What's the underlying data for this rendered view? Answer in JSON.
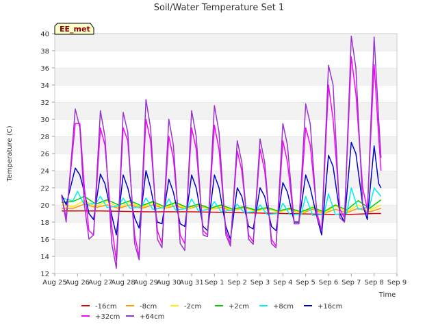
{
  "chart_data": {
    "type": "line",
    "title": "Soil/Water Temperature Set 1",
    "xlabel": "Time",
    "ylabel": "Temperature (C)",
    "station_label": "EE_met",
    "x_ticks": [
      "Aug 25",
      "Aug 26",
      "Aug 27",
      "Aug 28",
      "Aug 29",
      "Aug 30",
      "Aug 31",
      "Sep 1",
      "Sep 2",
      "Sep 3",
      "Sep 4",
      "Sep 5",
      "Sep 6",
      "Sep 7",
      "Sep 8",
      "Sep 9"
    ],
    "y_ticks": [
      12,
      14,
      16,
      18,
      20,
      22,
      24,
      26,
      28,
      30,
      32,
      34,
      36,
      38,
      40
    ],
    "xlim": [
      0,
      15
    ],
    "ylim": [
      12,
      40
    ],
    "grid": "horizontal bands",
    "legend_position": "bottom",
    "series": [
      {
        "name": "-16cm",
        "color": "#dd0000",
        "x": [
          0.3,
          2.0,
          4.0,
          6.0,
          8.0,
          10.0,
          12.0,
          13.0,
          14.0,
          14.3
        ],
        "y": [
          19.3,
          19.3,
          19.2,
          19.2,
          19.1,
          19.0,
          18.9,
          18.9,
          19.0,
          19.0
        ]
      },
      {
        "name": "-8cm",
        "color": "#ff9900",
        "x": [
          0.3,
          0.8,
          1.3,
          1.8,
          2.3,
          2.8,
          3.3,
          3.8,
          4.3,
          4.8,
          5.3,
          5.8,
          6.3,
          6.8,
          7.3,
          7.8,
          8.3,
          8.8,
          9.3,
          9.8,
          10.3,
          10.8,
          11.3,
          11.8,
          12.3,
          12.8,
          13.3,
          13.8,
          14.3
        ],
        "y": [
          19.6,
          19.6,
          20.1,
          19.7,
          20.0,
          19.6,
          20.0,
          19.6,
          20.0,
          19.6,
          19.9,
          19.5,
          19.9,
          19.5,
          19.7,
          19.3,
          19.7,
          19.3,
          19.6,
          19.2,
          19.5,
          19.0,
          19.5,
          19.0,
          19.5,
          19.1,
          19.6,
          19.2,
          19.6
        ]
      },
      {
        "name": "-2cm",
        "color": "#ffee00",
        "x": [
          0.3,
          0.8,
          1.3,
          1.8,
          2.3,
          2.8,
          3.3,
          3.8,
          4.3,
          4.8,
          5.3,
          5.8,
          6.3,
          6.8,
          7.3,
          7.8,
          8.3,
          8.8,
          9.3,
          9.8,
          10.3,
          10.8,
          11.3,
          11.8,
          12.3,
          12.8,
          13.3,
          13.8,
          14.3
        ],
        "y": [
          20.0,
          19.8,
          20.5,
          19.8,
          20.4,
          19.7,
          20.3,
          19.7,
          20.3,
          19.6,
          20.2,
          19.5,
          20.1,
          19.4,
          19.9,
          19.3,
          19.8,
          19.2,
          19.7,
          19.1,
          19.6,
          19.0,
          19.8,
          19.0,
          19.9,
          19.2,
          20.0,
          19.4,
          20.0
        ]
      },
      {
        "name": "+2cm",
        "color": "#00cc00",
        "x": [
          0.3,
          0.8,
          1.3,
          1.8,
          2.3,
          2.8,
          3.3,
          3.8,
          4.3,
          4.8,
          5.3,
          5.8,
          6.3,
          6.8,
          7.3,
          7.8,
          8.3,
          8.8,
          9.3,
          9.8,
          10.3,
          10.8,
          11.3,
          11.8,
          12.3,
          12.8,
          13.3,
          13.8,
          14.3
        ],
        "y": [
          20.3,
          20.4,
          21.0,
          20.1,
          20.6,
          20.0,
          20.5,
          19.9,
          20.4,
          19.8,
          20.3,
          19.7,
          20.1,
          19.6,
          20.0,
          19.5,
          19.8,
          19.4,
          19.7,
          19.3,
          19.6,
          19.2,
          19.7,
          19.2,
          20.0,
          19.4,
          20.5,
          19.6,
          20.6
        ]
      },
      {
        "name": "+8cm",
        "color": "#00eeee",
        "x": [
          0.3,
          0.8,
          1.0,
          1.3,
          1.8,
          2.0,
          2.3,
          2.8,
          3.0,
          3.3,
          3.8,
          4.0,
          4.3,
          4.8,
          5.0,
          5.3,
          5.8,
          6.0,
          6.3,
          6.8,
          7.0,
          7.3,
          7.8,
          8.0,
          8.3,
          8.8,
          9.0,
          9.3,
          9.8,
          10.0,
          10.3,
          10.8,
          11.0,
          11.3,
          11.8,
          12.0,
          12.3,
          12.8,
          13.0,
          13.3,
          13.8,
          14.0,
          14.3
        ],
        "y": [
          20.8,
          20.5,
          21.6,
          20.0,
          20.2,
          21.0,
          19.7,
          19.9,
          20.8,
          19.6,
          19.8,
          20.8,
          19.5,
          19.7,
          20.7,
          19.4,
          19.6,
          20.7,
          19.3,
          19.5,
          20.4,
          19.2,
          19.4,
          20.1,
          19.1,
          19.2,
          20.0,
          18.9,
          19.0,
          20.2,
          18.9,
          18.9,
          21.0,
          18.8,
          18.9,
          21.3,
          18.9,
          19.0,
          22.0,
          19.5,
          19.8,
          22.0,
          21.0
        ]
      },
      {
        "name": "+16cm",
        "color": "#0000cc",
        "x": [
          0.3,
          0.5,
          0.9,
          1.1,
          1.3,
          1.5,
          1.7,
          2.0,
          2.2,
          2.5,
          2.7,
          3.0,
          3.2,
          3.5,
          3.7,
          4.0,
          4.2,
          4.5,
          4.7,
          5.0,
          5.2,
          5.5,
          5.7,
          6.0,
          6.2,
          6.5,
          6.7,
          7.0,
          7.2,
          7.5,
          7.7,
          8.0,
          8.2,
          8.5,
          8.7,
          9.0,
          9.2,
          9.5,
          9.7,
          10.0,
          10.2,
          10.5,
          10.7,
          11.0,
          11.2,
          11.5,
          11.7,
          12.0,
          12.2,
          12.5,
          12.7,
          13.0,
          13.2,
          13.5,
          13.7,
          14.0,
          14.2,
          14.3
        ],
        "y": [
          21.2,
          20.0,
          24.3,
          23.5,
          21.5,
          19.0,
          18.3,
          23.6,
          22.5,
          18.8,
          16.5,
          23.5,
          22.0,
          18.5,
          17.3,
          24.0,
          22.0,
          18.0,
          17.8,
          23.0,
          21.5,
          17.8,
          17.5,
          23.5,
          22.0,
          17.5,
          17.0,
          23.5,
          22.0,
          17.5,
          16.0,
          22.0,
          21.0,
          17.5,
          17.2,
          22.0,
          21.0,
          17.5,
          17.0,
          22.6,
          21.5,
          18.0,
          18.0,
          23.5,
          22.0,
          18.5,
          16.5,
          25.8,
          24.5,
          19.0,
          18.0,
          27.3,
          26.0,
          20.0,
          18.3,
          26.9,
          22.5,
          22.0
        ]
      },
      {
        "name": "+32cm",
        "color": "#ff00ff",
        "x": [
          0.3,
          0.5,
          0.9,
          1.1,
          1.3,
          1.5,
          1.7,
          2.0,
          2.2,
          2.5,
          2.7,
          3.0,
          3.2,
          3.5,
          3.7,
          4.0,
          4.2,
          4.5,
          4.7,
          5.0,
          5.2,
          5.5,
          5.7,
          6.0,
          6.2,
          6.5,
          6.7,
          7.0,
          7.2,
          7.5,
          7.7,
          8.0,
          8.2,
          8.5,
          8.7,
          9.0,
          9.2,
          9.5,
          9.7,
          10.0,
          10.2,
          10.5,
          10.7,
          11.0,
          11.2,
          11.5,
          11.7,
          12.0,
          12.2,
          12.5,
          12.7,
          13.0,
          13.2,
          13.5,
          13.7,
          14.0,
          14.2,
          14.3
        ],
        "y": [
          21.0,
          18.5,
          29.5,
          29.5,
          22.0,
          17.0,
          16.5,
          29.0,
          27.0,
          17.5,
          13.5,
          29.0,
          27.5,
          16.5,
          14.0,
          30.0,
          27.5,
          17.0,
          15.5,
          28.0,
          25.5,
          16.5,
          15.5,
          29.0,
          26.5,
          17.0,
          16.5,
          29.3,
          26.5,
          17.0,
          15.5,
          26.3,
          24.0,
          16.5,
          15.7,
          26.5,
          24.0,
          16.0,
          15.2,
          27.5,
          25.0,
          17.8,
          17.8,
          29.0,
          27.0,
          19.0,
          17.0,
          34.0,
          30.0,
          19.5,
          18.5,
          37.3,
          33.0,
          22.0,
          19.5,
          36.4,
          28.0,
          24.0
        ]
      },
      {
        "name": "+64cm",
        "color": "#9933cc",
        "x": [
          0.3,
          0.5,
          0.9,
          1.1,
          1.3,
          1.5,
          1.7,
          2.0,
          2.2,
          2.5,
          2.7,
          3.0,
          3.2,
          3.5,
          3.7,
          4.0,
          4.2,
          4.5,
          4.7,
          5.0,
          5.2,
          5.5,
          5.7,
          6.0,
          6.2,
          6.5,
          6.7,
          7.0,
          7.2,
          7.5,
          7.7,
          8.0,
          8.2,
          8.5,
          8.7,
          9.0,
          9.2,
          9.5,
          9.7,
          10.0,
          10.2,
          10.5,
          10.7,
          11.0,
          11.2,
          11.5,
          11.7,
          12.0,
          12.2,
          12.5,
          12.7,
          13.0,
          13.2,
          13.5,
          13.7,
          14.0,
          14.2,
          14.3
        ],
        "y": [
          21.2,
          18.0,
          31.2,
          29.0,
          20.0,
          16.0,
          16.5,
          31.0,
          28.0,
          15.5,
          12.6,
          30.8,
          28.5,
          15.5,
          13.6,
          32.3,
          29.0,
          16.0,
          15.0,
          30.0,
          27.0,
          15.5,
          14.7,
          31.0,
          28.0,
          16.5,
          16.3,
          31.6,
          28.5,
          16.5,
          15.2,
          27.5,
          25.0,
          16.0,
          15.4,
          27.7,
          25.0,
          15.5,
          15.0,
          29.5,
          27.0,
          17.8,
          17.8,
          31.8,
          29.5,
          18.5,
          17.0,
          36.3,
          34.0,
          18.5,
          18.0,
          39.7,
          36.0,
          20.0,
          18.8,
          39.6,
          30.0,
          25.5
        ]
      }
    ]
  }
}
